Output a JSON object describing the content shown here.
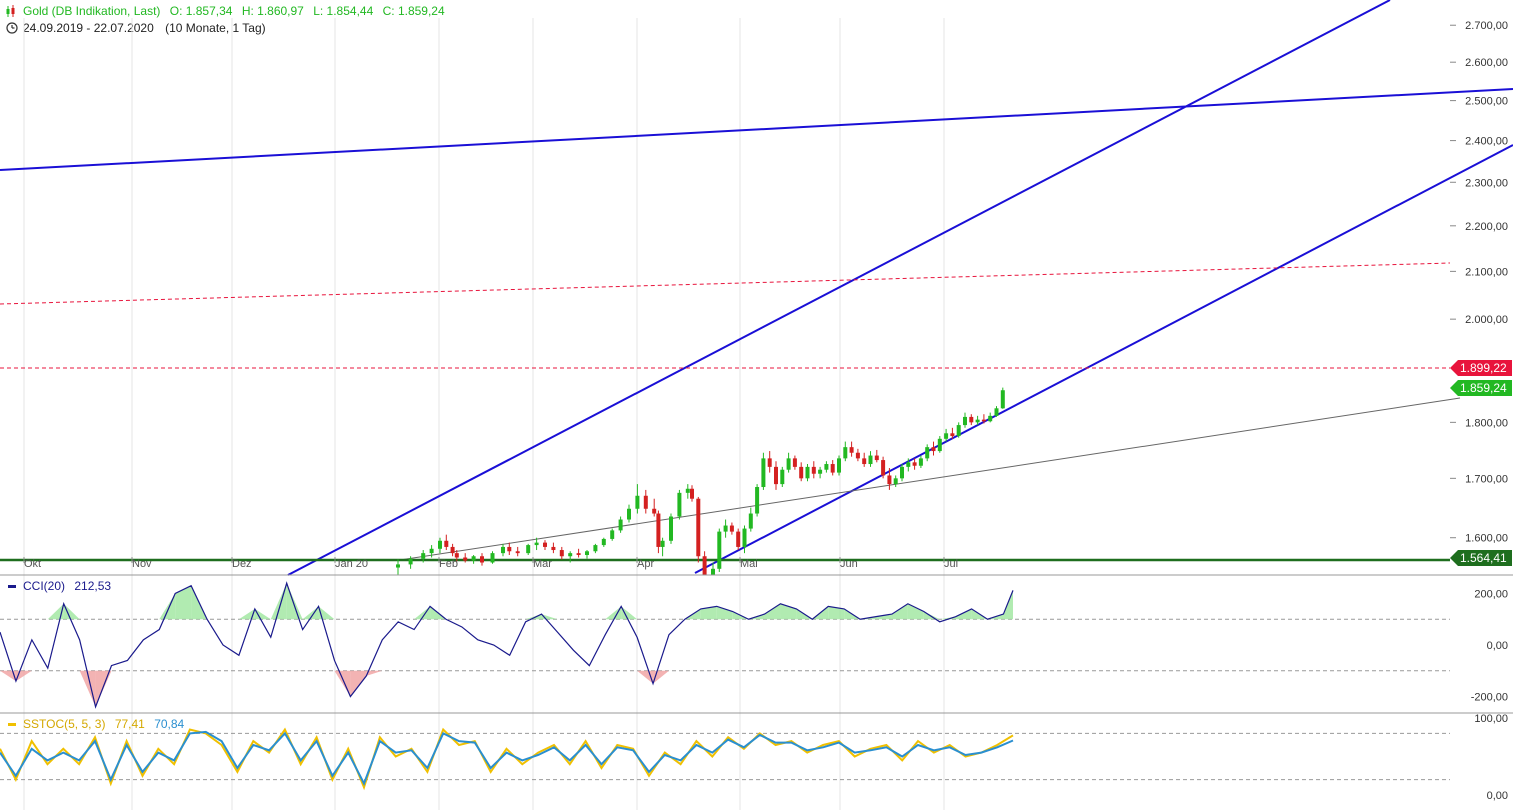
{
  "header": {
    "instrument": "Gold (DB Indikation, Last)",
    "open": "O: 1.857,34",
    "high": "H: 1.860,97",
    "low": "L: 1.854,44",
    "close": "C: 1.859,24",
    "range": "24.09.2019 - 22.07.2020",
    "period": "(10 Monate, 1 Tag)",
    "icon_chart": "candle-chart-icon",
    "icon_clock": "clock-icon"
  },
  "colors": {
    "up": "#22b822",
    "down": "#d42020",
    "trend": "#1a0fd6",
    "support": "#1e6e1e",
    "resistance": "#e8143c",
    "cci": "#1a1a8c",
    "stoch_k": "#f0c000",
    "stoch_d": "#2a8fd0"
  },
  "chart_data": [
    {
      "type": "candlestick",
      "title": "Gold (DB Indikation, Last)",
      "x_ticks": [
        "Okt",
        "Nov",
        "Dez",
        "Jan 20",
        "Feb",
        "Mar",
        "Apr",
        "Mai",
        "Jun",
        "Jul"
      ],
      "y_ticks": [
        "1.600,00",
        "1.700,00",
        "1.800,00",
        "2.000,00",
        "2.100,00",
        "2.200,00",
        "2.300,00",
        "2.400,00",
        "2.500,00",
        "2.600,00",
        "2.700,00"
      ],
      "y_tick_values": [
        1600,
        1700,
        1800,
        2000,
        2100,
        2200,
        2300,
        2400,
        2500,
        2600,
        2700
      ],
      "ylim": [
        1564,
        2720
      ],
      "scale": "log",
      "ohlc": [
        [
          3,
          1552,
          1565,
          1540,
          1557
        ],
        [
          3.6,
          1557,
          1570,
          1550,
          1566
        ],
        [
          4.2,
          1566,
          1580,
          1560,
          1575
        ],
        [
          4.6,
          1575,
          1588,
          1568,
          1582
        ],
        [
          5,
          1582,
          1600,
          1575,
          1595
        ],
        [
          5.3,
          1595,
          1605,
          1580,
          1585
        ],
        [
          5.6,
          1585,
          1590,
          1570,
          1575
        ],
        [
          5.8,
          1575,
          1580,
          1562,
          1568
        ],
        [
          6.2,
          1568,
          1575,
          1560,
          1563
        ],
        [
          6.6,
          1563,
          1572,
          1558,
          1570
        ],
        [
          7,
          1570,
          1575,
          1555,
          1560
        ],
        [
          7.5,
          1560,
          1578,
          1558,
          1575
        ],
        [
          8,
          1575,
          1590,
          1570,
          1585
        ],
        [
          8.3,
          1585,
          1592,
          1572,
          1578
        ],
        [
          8.7,
          1578,
          1585,
          1570,
          1575
        ],
        [
          9.2,
          1575,
          1590,
          1572,
          1588
        ],
        [
          9.6,
          1588,
          1600,
          1580,
          1592
        ],
        [
          10,
          1592,
          1596,
          1580,
          1585
        ],
        [
          10.4,
          1585,
          1592,
          1575,
          1580
        ],
        [
          10.8,
          1580,
          1585,
          1565,
          1570
        ],
        [
          11.2,
          1570,
          1578,
          1560,
          1575
        ],
        [
          11.6,
          1575,
          1582,
          1568,
          1572
        ],
        [
          12,
          1572,
          1580,
          1566,
          1578
        ],
        [
          12.4,
          1578,
          1590,
          1575,
          1588
        ],
        [
          12.8,
          1588,
          1600,
          1585,
          1598
        ],
        [
          13.2,
          1598,
          1615,
          1595,
          1612
        ],
        [
          13.6,
          1612,
          1635,
          1608,
          1630
        ],
        [
          14,
          1630,
          1655,
          1625,
          1648
        ],
        [
          14.4,
          1648,
          1690,
          1640,
          1670
        ],
        [
          14.8,
          1670,
          1680,
          1640,
          1648
        ],
        [
          15.2,
          1648,
          1665,
          1635,
          1640
        ],
        [
          15.4,
          1640,
          1645,
          1575,
          1585
        ],
        [
          15.6,
          1585,
          1600,
          1570,
          1595
        ],
        [
          16,
          1595,
          1640,
          1590,
          1635
        ],
        [
          16.4,
          1635,
          1680,
          1630,
          1675
        ],
        [
          16.8,
          1675,
          1690,
          1665,
          1682
        ],
        [
          17,
          1682,
          1688,
          1660,
          1665
        ],
        [
          17.3,
          1665,
          1668,
          1560,
          1570
        ],
        [
          17.6,
          1570,
          1578,
          1480,
          1495
        ],
        [
          18,
          1495,
          1560,
          1480,
          1550
        ],
        [
          18.3,
          1550,
          1615,
          1545,
          1610
        ],
        [
          18.6,
          1610,
          1630,
          1600,
          1620
        ],
        [
          18.9,
          1620,
          1625,
          1605,
          1610
        ],
        [
          19.2,
          1610,
          1615,
          1580,
          1585
        ],
        [
          19.5,
          1585,
          1620,
          1575,
          1615
        ],
        [
          19.8,
          1615,
          1650,
          1610,
          1640
        ],
        [
          20.1,
          1640,
          1690,
          1635,
          1685
        ],
        [
          20.4,
          1685,
          1745,
          1680,
          1735
        ],
        [
          20.7,
          1735,
          1748,
          1710,
          1720
        ],
        [
          21,
          1720,
          1730,
          1680,
          1690
        ],
        [
          21.3,
          1690,
          1720,
          1685,
          1715
        ],
        [
          21.6,
          1715,
          1745,
          1710,
          1735
        ],
        [
          21.9,
          1735,
          1740,
          1715,
          1720
        ],
        [
          22.2,
          1720,
          1728,
          1695,
          1700
        ],
        [
          22.5,
          1700,
          1725,
          1695,
          1720
        ],
        [
          22.8,
          1720,
          1730,
          1700,
          1708
        ],
        [
          23.1,
          1708,
          1720,
          1700,
          1715
        ],
        [
          23.4,
          1715,
          1730,
          1710,
          1725
        ],
        [
          23.7,
          1725,
          1732,
          1705,
          1710
        ],
        [
          24,
          1710,
          1740,
          1705,
          1735
        ],
        [
          24.3,
          1735,
          1765,
          1730,
          1755
        ],
        [
          24.6,
          1755,
          1765,
          1738,
          1745
        ],
        [
          24.9,
          1745,
          1752,
          1730,
          1735
        ],
        [
          25.2,
          1735,
          1745,
          1720,
          1725
        ],
        [
          25.5,
          1725,
          1748,
          1720,
          1740
        ],
        [
          25.8,
          1740,
          1750,
          1728,
          1732
        ],
        [
          26.1,
          1732,
          1738,
          1700,
          1705
        ],
        [
          26.4,
          1705,
          1718,
          1680,
          1690
        ],
        [
          26.7,
          1690,
          1705,
          1685,
          1700
        ],
        [
          27,
          1700,
          1725,
          1695,
          1720
        ],
        [
          27.3,
          1720,
          1735,
          1712,
          1728
        ],
        [
          27.6,
          1728,
          1735,
          1715,
          1722
        ],
        [
          27.9,
          1722,
          1740,
          1718,
          1735
        ],
        [
          28.2,
          1735,
          1760,
          1730,
          1755
        ],
        [
          28.5,
          1755,
          1765,
          1740,
          1748
        ],
        [
          28.8,
          1748,
          1775,
          1745,
          1770
        ],
        [
          29.1,
          1770,
          1788,
          1765,
          1780
        ],
        [
          29.4,
          1780,
          1790,
          1770,
          1775
        ],
        [
          29.7,
          1775,
          1800,
          1772,
          1795
        ],
        [
          30,
          1795,
          1818,
          1790,
          1810
        ],
        [
          30.3,
          1810,
          1815,
          1795,
          1800
        ],
        [
          30.6,
          1800,
          1812,
          1795,
          1805
        ],
        [
          30.9,
          1805,
          1815,
          1798,
          1802
        ],
        [
          31.2,
          1802,
          1818,
          1800,
          1812
        ],
        [
          31.5,
          1812,
          1830,
          1810,
          1826
        ],
        [
          31.8,
          1826,
          1865,
          1825,
          1860
        ]
      ]
    },
    {
      "type": "line",
      "title": "CCI(20)",
      "last_value": "212,53",
      "y_ticks": [
        "200,00",
        "0,00",
        "-200,00"
      ],
      "y_tick_values": [
        200,
        0,
        -200
      ],
      "ylim": [
        -260,
        260
      ],
      "reference_lines": [
        100,
        -100
      ],
      "x": [
        0,
        0.5,
        1,
        1.5,
        2,
        2.5,
        3,
        3.5,
        4,
        4.5,
        5,
        5.5,
        6,
        6.5,
        7,
        7.5,
        8,
        8.5,
        9,
        9.5,
        10,
        10.5,
        11,
        11.5,
        12,
        12.5,
        13,
        13.5,
        14,
        14.5,
        15,
        15.5,
        16,
        16.5,
        17,
        17.5,
        18,
        18.5,
        19,
        19.5,
        20,
        20.5,
        21,
        21.5,
        22,
        22.5,
        23,
        23.5,
        24,
        24.5,
        25,
        25.5,
        26,
        26.5,
        27,
        27.5,
        28,
        28.5,
        29,
        29.5,
        30,
        30.5,
        31,
        31.5,
        31.8
      ],
      "values": [
        50,
        -140,
        20,
        -90,
        160,
        20,
        -240,
        -80,
        -60,
        20,
        60,
        200,
        230,
        100,
        0,
        -40,
        140,
        30,
        240,
        60,
        150,
        -60,
        -200,
        -120,
        20,
        90,
        60,
        150,
        100,
        70,
        20,
        0,
        -40,
        90,
        120,
        50,
        -20,
        -80,
        40,
        150,
        30,
        -150,
        40,
        100,
        140,
        150,
        130,
        100,
        120,
        160,
        140,
        100,
        150,
        140,
        100,
        110,
        120,
        160,
        130,
        90,
        110,
        140,
        100,
        120,
        212
      ]
    },
    {
      "type": "line",
      "title": "SSTOC(5, 5, 3)",
      "k_last": "77,41",
      "d_last": "70,84",
      "y_ticks": [
        "100,00",
        "0,00"
      ],
      "y_tick_values": [
        100,
        0
      ],
      "ylim": [
        0,
        100
      ],
      "reference_lines": [
        80,
        20
      ],
      "series": [
        {
          "name": "77,41",
          "values": [
            60,
            20,
            70,
            40,
            60,
            40,
            75,
            15,
            70,
            25,
            60,
            40,
            85,
            80,
            65,
            30,
            70,
            55,
            85,
            40,
            75,
            20,
            60,
            10,
            75,
            50,
            60,
            30,
            85,
            65,
            70,
            30,
            60,
            40,
            55,
            65,
            40,
            70,
            35,
            65,
            60,
            25,
            55,
            40,
            70,
            50,
            75,
            60,
            80,
            65,
            70,
            55,
            65,
            70,
            50,
            60,
            65,
            45,
            70,
            55,
            65,
            50,
            55,
            65,
            77.41
          ]
        },
        {
          "name": "70,84",
          "values": [
            55,
            25,
            60,
            45,
            55,
            45,
            70,
            20,
            65,
            30,
            55,
            45,
            80,
            82,
            70,
            35,
            65,
            58,
            80,
            45,
            70,
            25,
            55,
            15,
            70,
            55,
            58,
            35,
            80,
            70,
            68,
            35,
            55,
            45,
            52,
            62,
            45,
            65,
            40,
            62,
            58,
            30,
            52,
            45,
            65,
            55,
            72,
            62,
            78,
            68,
            68,
            58,
            62,
            68,
            55,
            58,
            62,
            50,
            65,
            58,
            62,
            52,
            55,
            62,
            70.84
          ]
        }
      ]
    }
  ],
  "price_tags": {
    "resistance": "1.899,22",
    "last": "1.859,24",
    "support": "1.564,41"
  },
  "cci_header": {
    "label": "CCI(20)",
    "value": "212,53"
  },
  "stoch_header": {
    "label": "SSTOC(5, 5, 3)",
    "k": "77,41",
    "d": "70,84"
  }
}
